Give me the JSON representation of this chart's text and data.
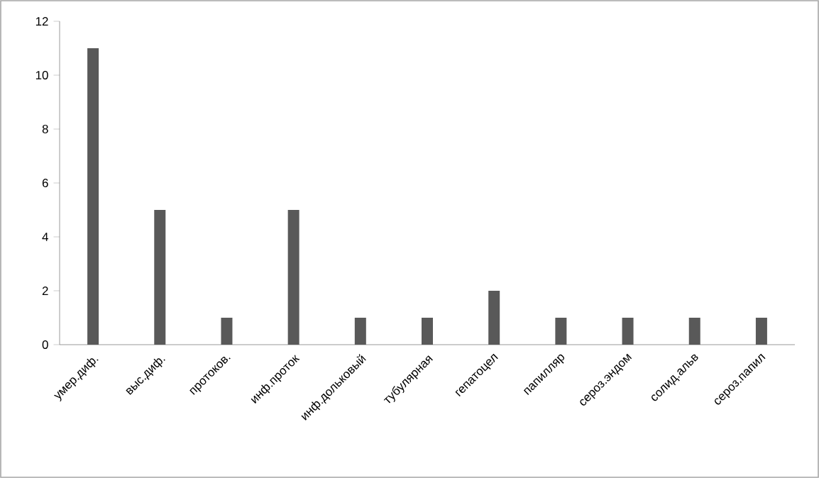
{
  "chart_data": {
    "type": "bar",
    "categories": [
      "умер.диф.",
      "выс.диф.",
      "протоков.",
      "инф.проток",
      "инф.дольковый",
      "тубулярная",
      "гепатоцел",
      "папилляр",
      "сероз.эндом",
      "солид.альв",
      "сероз.папил"
    ],
    "values": [
      11,
      5,
      1,
      5,
      1,
      1,
      2,
      1,
      1,
      1,
      1
    ],
    "color": "#595959",
    "ylim": [
      0,
      12
    ],
    "yticks": [
      0,
      2,
      4,
      6,
      8,
      10,
      12
    ]
  }
}
